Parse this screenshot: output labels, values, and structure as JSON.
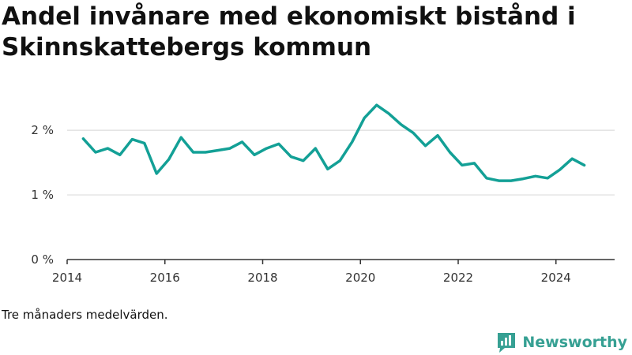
{
  "title": "Andel invånare med ekonomiskt bistånd i Skinnskattebergs kommun",
  "caption": "Tre månaders medelvärden.",
  "brand": {
    "name": "Newsworthy",
    "logo_icon": "newsworthy-bar-chart-icon",
    "color": "#36a093"
  },
  "colors": {
    "line": "#13a096",
    "grid": "#dcdcdc",
    "axis": "#333333"
  },
  "chart_data": {
    "type": "line",
    "title": "Andel invånare med ekonomiskt bistånd i Skinnskattebergs kommun",
    "xlabel": "",
    "ylabel": "",
    "xlim": [
      2014,
      2025.2
    ],
    "ylim": [
      0,
      2.6
    ],
    "grid": true,
    "x_ticks": [
      2014,
      2016,
      2018,
      2020,
      2022,
      2024
    ],
    "x_tick_labels": [
      "2014",
      "2016",
      "2018",
      "2020",
      "2022",
      "2024"
    ],
    "y_ticks": [
      0,
      1,
      2
    ],
    "y_tick_labels": [
      "0 %",
      "1 %",
      "2 %"
    ],
    "series": [
      {
        "x": [
          2014.33,
          2014.58,
          2014.83,
          2015.08,
          2015.33,
          2015.58,
          2015.83,
          2016.08,
          2016.33,
          2016.58,
          2016.83,
          2017.08,
          2017.33,
          2017.58,
          2017.83,
          2018.08,
          2018.33,
          2018.58,
          2018.83,
          2019.08,
          2019.33,
          2019.58,
          2019.83,
          2020.08,
          2020.33,
          2020.58,
          2020.83,
          2021.08,
          2021.33,
          2021.58,
          2021.83,
          2022.08,
          2022.33,
          2022.58,
          2022.83,
          2023.08,
          2023.33,
          2023.58,
          2023.83,
          2024.08,
          2024.33,
          2024.58
        ],
        "values": [
          1.87,
          1.66,
          1.72,
          1.62,
          1.86,
          1.8,
          1.33,
          1.55,
          1.89,
          1.66,
          1.66,
          1.69,
          1.72,
          1.82,
          1.62,
          1.72,
          1.79,
          1.59,
          1.53,
          1.72,
          1.4,
          1.53,
          1.82,
          2.19,
          2.39,
          2.26,
          2.09,
          1.96,
          1.76,
          1.92,
          1.66,
          1.46,
          1.49,
          1.26,
          1.22,
          1.22,
          1.25,
          1.29,
          1.26,
          1.39,
          1.56,
          1.46
        ]
      }
    ]
  }
}
